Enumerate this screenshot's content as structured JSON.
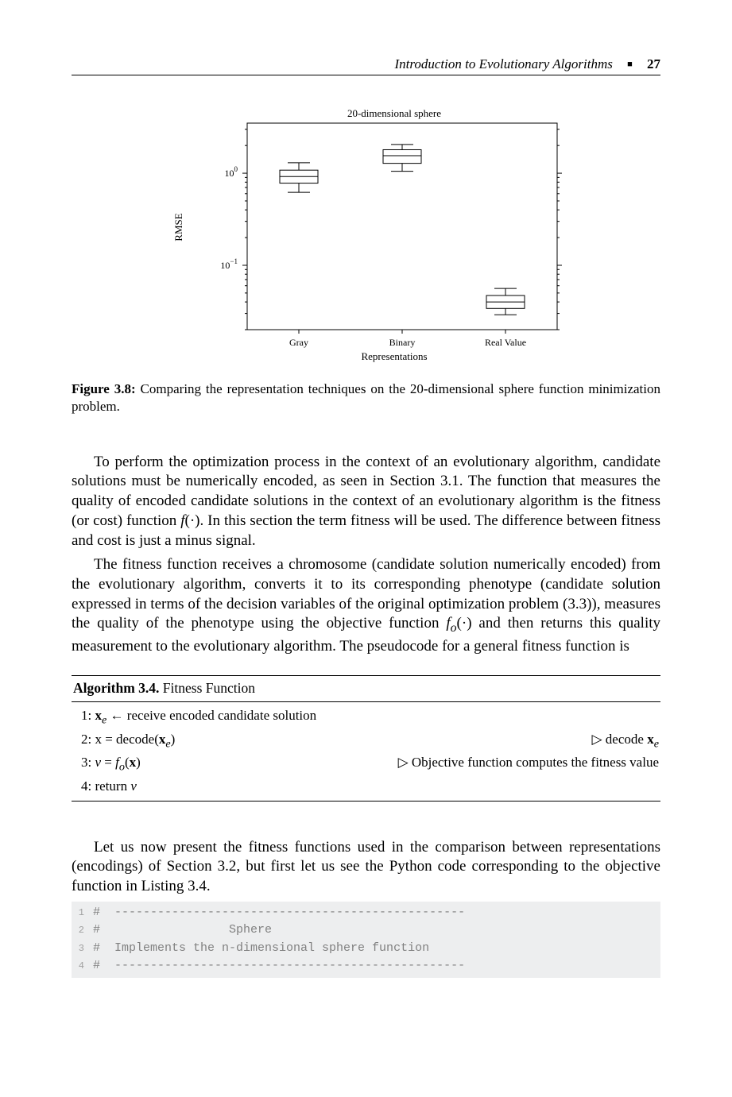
{
  "header": {
    "title": "Introduction to Evolutionary Algorithms",
    "page": "27"
  },
  "chart": {
    "type": "boxplot",
    "title": "20-dimensional sphere",
    "title_fontsize": 13,
    "xlabel": "Representations",
    "ylabel": "RMSE",
    "label_fontsize": 12,
    "categories": [
      "Gray",
      "Binary",
      "Real Value"
    ],
    "yscale": "log",
    "ylim": [
      0.02,
      3.5
    ],
    "yticks": [
      0.1,
      1
    ],
    "ytick_labels": [
      "10⁻¹",
      "10⁰"
    ],
    "background_color": "#ffffff",
    "border_color": "#000000",
    "box_color": "#000000",
    "box_fill": "#ffffff",
    "tick_fontsize": 12,
    "series": {
      "Gray": {
        "q1": 0.78,
        "median": 0.92,
        "q3": 1.08,
        "whisker_low": 0.62,
        "whisker_high": 1.3
      },
      "Binary": {
        "q1": 1.28,
        "median": 1.55,
        "q3": 1.8,
        "whisker_low": 1.05,
        "whisker_high": 2.05
      },
      "Real Value": {
        "q1": 0.034,
        "median": 0.04,
        "q3": 0.047,
        "whisker_low": 0.029,
        "whisker_high": 0.056
      }
    }
  },
  "caption": {
    "label": "Figure 3.8:",
    "text": "Comparing the representation techniques on the 20-dimensional sphere function minimization problem."
  },
  "para1": "To perform the optimization process in the context of an evolutionary algorithm, candidate solutions must be numerically encoded, as seen in Section 3.1. The function that measures the quality of encoded candidate solutions in the context of an evolutionary algorithm is the fitness (or cost) function f(·). In this section the term fitness will be used. The difference between fitness and cost is just a minus signal.",
  "para2": "The fitness function receives a chromosome (candidate solution numerically encoded) from the evolutionary algorithm, converts it to its corresponding phenotype (candidate solution expressed in terms of the decision variables of the original optimization problem (3.3)), measures the quality of the phenotype using the objective function fₒ(·) and then returns this quality measurement to the evolutionary algorithm. The pseudocode for a general fitness function is",
  "algorithm": {
    "title_bold": "Algorithm 3.4.",
    "title_rest": "Fitness Function",
    "lines": [
      {
        "n": "1:",
        "l": "xₑ ← receive encoded candidate solution",
        "r": ""
      },
      {
        "n": "2:",
        "l": "x = decode(xₑ)",
        "r": "▷ decode xₑ"
      },
      {
        "n": "3:",
        "l": "v = fₒ(x)",
        "r": "▷ Objective function computes the fitness value"
      },
      {
        "n": "4:",
        "l": "return v",
        "r": ""
      }
    ]
  },
  "para3": "Let us now present the fitness functions used in the comparison between representations (encodings) of Section 3.2, but first let us see the Python code corresponding to the objective function in Listing 3.4.",
  "code": {
    "lines": [
      "#  -------------------------------------------------",
      "#                  Sphere",
      "#  Implements the n-dimensional sphere function",
      "#  -------------------------------------------------"
    ]
  }
}
